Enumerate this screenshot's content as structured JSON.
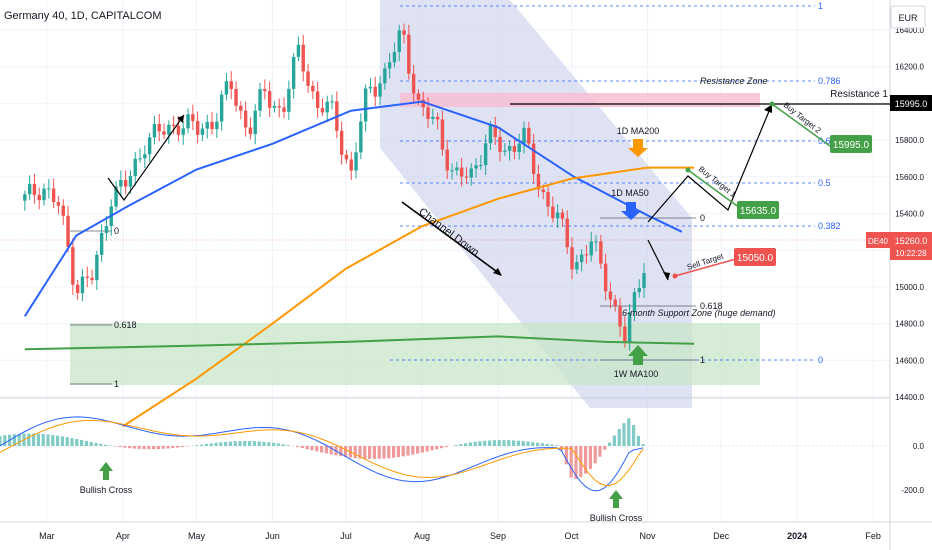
{
  "header": {
    "symbol": "Germany 40, 1D, CAPITALCOM"
  },
  "currency": "EUR",
  "colors": {
    "up": "#26a69a",
    "down": "#ef5350",
    "ma50": "#2962ff",
    "ma200": "#ff9800",
    "wma100": "#43a047",
    "fib": "#2962ff",
    "zone_fill": "#c8e6c9",
    "channel_fill": "#c5cae9",
    "resistance_fill": "#f8bbd0",
    "macd": "#2962ff",
    "signal": "#ff9800"
  },
  "price_axis": {
    "ticks": [
      "16400.0",
      "16200.0",
      "16000.0",
      "15800.0",
      "15600.0",
      "15400.0",
      "15200.0",
      "15000.0",
      "14800.0",
      "14600.0",
      "14400.0"
    ],
    "last_symbol": "DE40",
    "last_price": "15260.0",
    "countdown": "10:22:28",
    "resistance_value": "15995.0"
  },
  "macd_axis": {
    "ticks": [
      "0.0",
      "-200.0"
    ]
  },
  "time_axis": {
    "labels": [
      "Mar",
      "Apr",
      "May",
      "Jun",
      "Jul",
      "Aug",
      "Sep",
      "Oct",
      "Nov",
      "Dec",
      "2024",
      "Feb"
    ]
  },
  "fib_right": [
    "1",
    "0.786",
    "0.618",
    "0.5",
    "0.382",
    "0"
  ],
  "fib_left": [
    "0",
    "0.618",
    "1"
  ],
  "fib_small": [
    "0",
    "0.618",
    "1"
  ],
  "annotations": {
    "resistance_zone": "Resistance Zone",
    "resistance_1": "Resistance 1",
    "ma200": "1D MA200",
    "ma50": "1D MA50",
    "channel_down": "Channel Down",
    "support_zone": "6-month Support Zone (huge demand)",
    "wma100": "1W MA100",
    "buy_target_1": "Buy Target 1",
    "buy_target_2": "Buy Target 2",
    "sell_target": "Sell Target",
    "bullish_cross_1": "Bullish Cross",
    "bullish_cross_2": "Bullish Cross"
  },
  "targets": {
    "buy_target_2_value": "15995.0",
    "buy_target_1_value": "15635.0",
    "sell_target_value": "15050.0"
  },
  "chart_data": {
    "type": "candlestick",
    "title": "Germany 40, 1D, CAPITALCOM",
    "ylim": [
      14280,
      16480
    ],
    "macd_ylim": [
      -340,
      200
    ],
    "series": [
      {
        "name": "price (approx. daily closes)",
        "date": [
          "2023-02-20",
          "2023-02-27",
          "2023-03-06",
          "2023-03-13",
          "2023-03-20",
          "2023-03-27",
          "2023-04-03",
          "2023-04-10",
          "2023-04-17",
          "2023-04-24",
          "2023-05-01",
          "2023-05-08",
          "2023-05-15",
          "2023-05-22",
          "2023-05-29",
          "2023-06-05",
          "2023-06-12",
          "2023-06-19",
          "2023-06-26",
          "2023-07-03",
          "2023-07-10",
          "2023-07-17",
          "2023-07-24",
          "2023-07-31",
          "2023-08-07",
          "2023-08-14",
          "2023-08-21",
          "2023-08-28",
          "2023-09-04",
          "2023-09-11",
          "2023-09-18",
          "2023-09-25",
          "2023-10-02",
          "2023-10-09",
          "2023-10-16",
          "2023-10-23",
          "2023-10-30",
          "2023-11-06",
          "2023-11-13"
        ],
        "values": [
          15470,
          15560,
          15430,
          15000,
          15050,
          15500,
          15560,
          15800,
          15840,
          15900,
          15850,
          15910,
          16100,
          15850,
          16060,
          15950,
          16300,
          15980,
          15950,
          15600,
          16090,
          16150,
          16400,
          15950,
          15900,
          15580,
          15620,
          15820,
          15740,
          15830,
          15540,
          15380,
          15120,
          15240,
          15000,
          14700,
          15130,
          15200,
          15260
        ]
      },
      {
        "name": "1D MA50",
        "date": [
          "2023-02-20",
          "2023-03-13",
          "2023-04-03",
          "2023-05-01",
          "2023-06-01",
          "2023-07-03",
          "2023-08-01",
          "2023-09-01",
          "2023-10-02",
          "2023-11-01",
          "2023-11-15"
        ],
        "values": [
          14840,
          15280,
          15440,
          15640,
          15780,
          15960,
          16010,
          15870,
          15600,
          15390,
          15300
        ]
      },
      {
        "name": "1D MA200",
        "date": [
          "2023-04-01",
          "2023-05-01",
          "2023-06-01",
          "2023-07-01",
          "2023-08-01",
          "2023-09-01",
          "2023-10-01",
          "2023-11-01",
          "2023-11-20"
        ],
        "values": [
          14240,
          14500,
          14800,
          15100,
          15330,
          15480,
          15590,
          15650,
          15650
        ]
      },
      {
        "name": "1W MA100",
        "date": [
          "2023-02-20",
          "2023-05-01",
          "2023-07-01",
          "2023-09-01",
          "2023-10-15",
          "2023-11-20"
        ],
        "values": [
          14660,
          14680,
          14700,
          14730,
          14700,
          14690
        ]
      }
    ],
    "levels": {
      "resistance_1": 15995,
      "buy_target_2": 15995,
      "buy_target_1": 15635,
      "sell_target": 15050,
      "last_price": 15260
    },
    "xlabel": "",
    "ylabel": ""
  }
}
